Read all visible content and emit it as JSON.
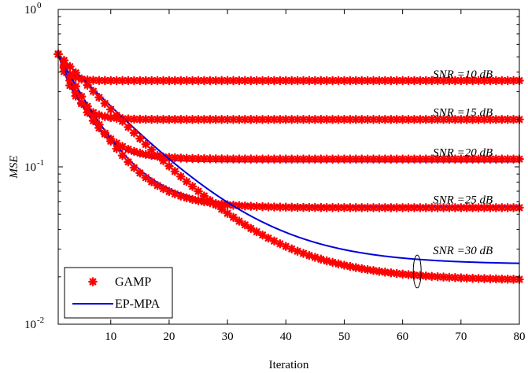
{
  "chart_data": {
    "type": "line",
    "xlabel": "Iteration",
    "ylabel": "MSE",
    "xlim": [
      1,
      80
    ],
    "ylim": [
      0.01,
      1
    ],
    "yscale": "log",
    "xticks": [
      10,
      20,
      30,
      40,
      50,
      60,
      70,
      80
    ],
    "xtick_labels": [
      "10",
      "20",
      "30",
      "40",
      "50",
      "60",
      "70",
      "80"
    ],
    "yticks": [
      0.01,
      0.1,
      1
    ],
    "ytick_labels": [
      {
        "base": "10",
        "exp": "-2"
      },
      {
        "base": "10",
        "exp": "-1"
      },
      {
        "base": "10",
        "exp": "0"
      }
    ],
    "grid": false,
    "legend": {
      "placement": "bottom-left",
      "entries": [
        {
          "name": "GAMP",
          "marker": "asterisk",
          "color": "#ff0000"
        },
        {
          "name": "EP-MPA",
          "line": "solid",
          "color": "#0000dd"
        }
      ]
    },
    "colors": {
      "gamp": "#ff0000",
      "epmpa": "#0000dd"
    },
    "annotations": [
      {
        "text": "SNR =10 dB",
        "x": 66,
        "y": 0.39
      },
      {
        "text": "SNR =15 dB",
        "x": 66,
        "y": 0.222
      },
      {
        "text": "SNR =20 dB",
        "x": 66,
        "y": 0.124
      },
      {
        "text": "SNR =25 dB",
        "x": 66,
        "y": 0.062
      },
      {
        "text": "SNR =30 dB",
        "x": 66,
        "y": 0.0295
      }
    ],
    "groups": [
      {
        "snr": "10 dB",
        "start": 0.52,
        "final_gamp": 0.353,
        "final_epmpa": 0.353,
        "tau_gamp": 1.3,
        "tau_epmpa": 1.3
      },
      {
        "snr": "15 dB",
        "start": 0.52,
        "final_gamp": 0.2,
        "final_epmpa": 0.2,
        "tau_gamp": 2.2,
        "tau_epmpa": 2.2
      },
      {
        "snr": "20 dB",
        "start": 0.52,
        "final_gamp": 0.112,
        "final_epmpa": 0.108,
        "tau_gamp": 3.8,
        "tau_epmpa": 3.8
      },
      {
        "snr": "25 dB",
        "start": 0.52,
        "final_gamp": 0.055,
        "final_epmpa": 0.056,
        "tau_gamp": 5.5,
        "tau_epmpa": 5.7
      },
      {
        "snr": "30 dB",
        "start": 0.52,
        "final_gamp": 0.019,
        "final_epmpa": 0.024,
        "tau_gamp": 10.5,
        "tau_epmpa": 11
      }
    ],
    "marker_ellipse": {
      "x": 62.5,
      "y_low": 0.017,
      "y_high": 0.0275
    }
  }
}
